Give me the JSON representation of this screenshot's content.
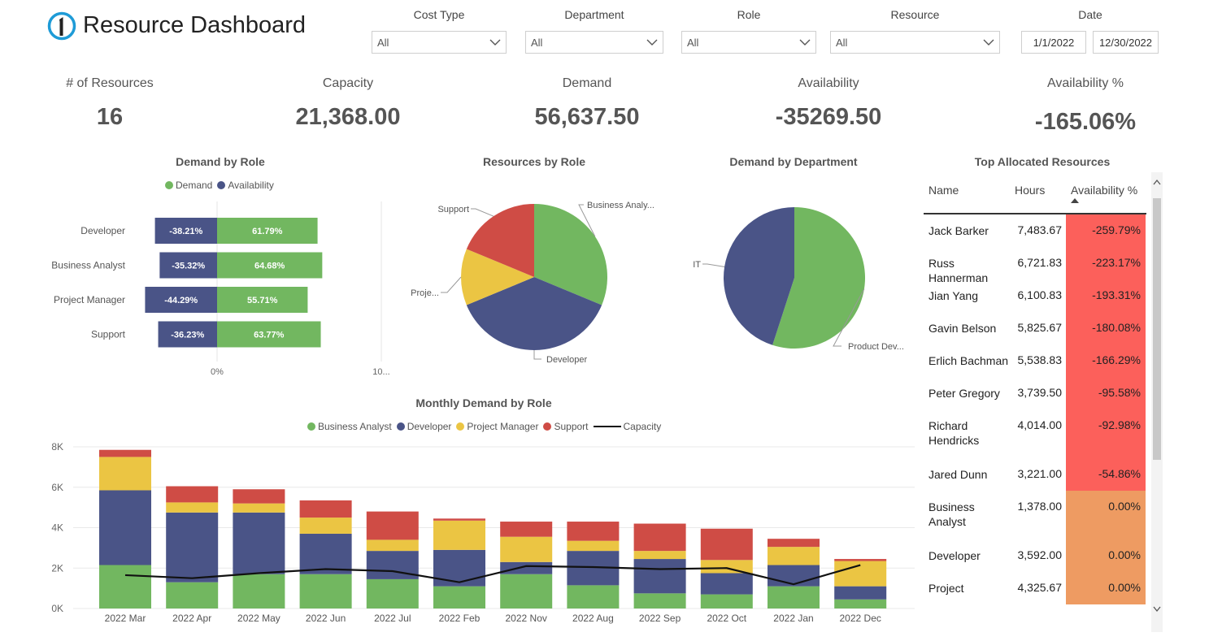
{
  "header": {
    "title": "Resource Dashboard",
    "logo_glyph": "1"
  },
  "filters": {
    "cost_type": {
      "label": "Cost Type",
      "value": "All"
    },
    "department": {
      "label": "Department",
      "value": "All"
    },
    "role": {
      "label": "Role",
      "value": "All"
    },
    "resource": {
      "label": "Resource",
      "value": "All"
    },
    "date": {
      "label": "Date",
      "start": "1/1/2022",
      "end": "12/30/2022"
    }
  },
  "kpis": {
    "resources": {
      "label": "# of Resources",
      "value": "16"
    },
    "capacity": {
      "label": "Capacity",
      "value": "21,368.00"
    },
    "demand": {
      "label": "Demand",
      "value": "56,637.50"
    },
    "availability": {
      "label": "Availability",
      "value": "-35269.50"
    },
    "availability_pct": {
      "label": "Availability %",
      "value": "-165.06%"
    }
  },
  "colors": {
    "green": "#72B760",
    "navy": "#4A5487",
    "yellow": "#EBC543",
    "red": "#CF4C45",
    "capacity_line": "#111111",
    "cell_red": "#FC605B",
    "cell_orange": "#EE9B62"
  },
  "chart_data": [
    {
      "id": "demand_by_role",
      "type": "bar",
      "title": "Demand by Role",
      "legend": [
        "Demand",
        "Availability"
      ],
      "categories": [
        "Developer",
        "Business Analyst",
        "Project Manager",
        "Support"
      ],
      "series": [
        {
          "name": "Availability",
          "values": [
            -38.21,
            -35.32,
            -44.29,
            -36.23
          ],
          "labels": [
            "-38.21%",
            "-35.32%",
            "-44.29%",
            "-36.23%"
          ]
        },
        {
          "name": "Demand",
          "values": [
            61.79,
            64.68,
            55.71,
            63.77
          ],
          "labels": [
            "61.79%",
            "64.68%",
            "55.71%",
            "63.77%"
          ]
        }
      ],
      "xticks": [
        "0%",
        "10..."
      ]
    },
    {
      "id": "resources_by_role",
      "type": "pie",
      "title": "Resources by Role",
      "slices": [
        {
          "label": "Business Analy...",
          "value": 5
        },
        {
          "label": "Developer",
          "value": 6
        },
        {
          "label": "Proje...",
          "value": 2
        },
        {
          "label": "Support",
          "value": 3
        }
      ]
    },
    {
      "id": "demand_by_department",
      "type": "pie",
      "title": "Demand by Department",
      "slices": [
        {
          "label": "Product Dev...",
          "value": 55
        },
        {
          "label": "IT",
          "value": 45
        }
      ]
    },
    {
      "id": "monthly_demand_by_role",
      "type": "bar",
      "title": "Monthly Demand by Role",
      "legend": [
        "Business Analyst",
        "Developer",
        "Project Manager",
        "Support",
        "Capacity"
      ],
      "categories": [
        "2022 Mar",
        "2022 Apr",
        "2022 May",
        "2022 Jun",
        "2022 Jul",
        "2022 Feb",
        "2022 Nov",
        "2022 Aug",
        "2022 Sep",
        "2022 Oct",
        "2022 Jan",
        "2022 Dec"
      ],
      "series": [
        {
          "name": "Business Analyst",
          "values": [
            2150,
            1300,
            1700,
            1700,
            1450,
            1100,
            1700,
            1150,
            750,
            700,
            1100,
            450
          ]
        },
        {
          "name": "Developer",
          "values": [
            3700,
            3450,
            3050,
            2000,
            1400,
            1800,
            600,
            1700,
            1700,
            1050,
            1050,
            650
          ]
        },
        {
          "name": "Project Manager",
          "values": [
            1650,
            500,
            450,
            800,
            550,
            1450,
            1250,
            500,
            400,
            650,
            900,
            1250
          ]
        },
        {
          "name": "Support",
          "values": [
            350,
            800,
            700,
            850,
            1400,
            100,
            750,
            950,
            1350,
            1550,
            400,
            100
          ]
        },
        {
          "name": "Capacity",
          "values": [
            1650,
            1500,
            1750,
            1950,
            1850,
            1300,
            2100,
            2050,
            1950,
            2000,
            1200,
            2150
          ]
        }
      ],
      "yticks": [
        "0K",
        "2K",
        "4K",
        "6K",
        "8K"
      ],
      "ylim": [
        0,
        8000
      ],
      "grid": true
    }
  ],
  "table": {
    "title": "Top Allocated Resources",
    "columns": [
      "Name",
      "Hours",
      "Availability %"
    ],
    "rows": [
      {
        "name": "Jack Barker",
        "hours": "7,483.67",
        "availability": "-259.79%",
        "level": "red"
      },
      {
        "name": "Russ Hannerman",
        "hours": "6,721.83",
        "availability": "-223.17%",
        "level": "red"
      },
      {
        "name": "Jian Yang",
        "hours": "6,100.83",
        "availability": "-193.31%",
        "level": "red"
      },
      {
        "name": "Gavin Belson",
        "hours": "5,825.67",
        "availability": "-180.08%",
        "level": "red"
      },
      {
        "name": "Erlich Bachman",
        "hours": "5,538.83",
        "availability": "-166.29%",
        "level": "red"
      },
      {
        "name": "Peter Gregory",
        "hours": "3,739.50",
        "availability": "-95.58%",
        "level": "red"
      },
      {
        "name": "Richard Hendricks",
        "hours": "4,014.00",
        "availability": "-92.98%",
        "level": "red"
      },
      {
        "name": "Jared Dunn",
        "hours": "3,221.00",
        "availability": "-54.86%",
        "level": "red"
      },
      {
        "name": "Business Analyst",
        "hours": "1,378.00",
        "availability": "0.00%",
        "level": "orange"
      },
      {
        "name": "Developer",
        "hours": "3,592.00",
        "availability": "0.00%",
        "level": "orange"
      },
      {
        "name": "Project",
        "hours": "4,325.67",
        "availability": "0.00%",
        "level": "orange"
      }
    ]
  }
}
